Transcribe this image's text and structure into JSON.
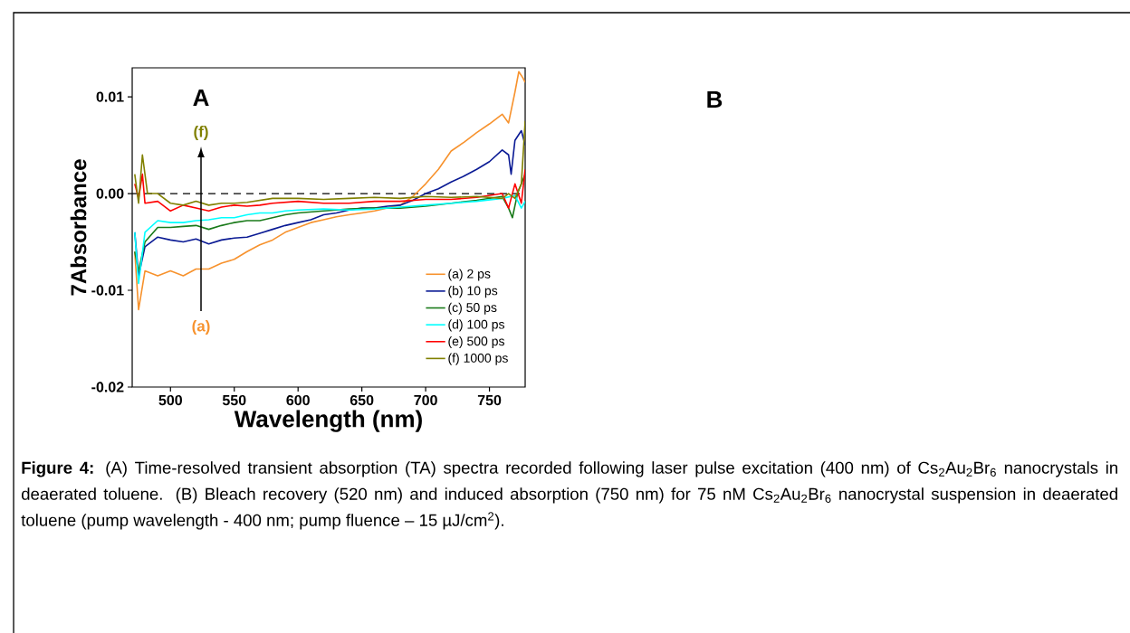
{
  "chart_data": {
    "type": "line",
    "xlabel": "Wavelength (nm)",
    "ylabel": "7Absorbance",
    "xlim": [
      470,
      778
    ],
    "ylim": [
      -0.02,
      0.013
    ],
    "xticks": [
      500,
      550,
      600,
      650,
      700,
      750
    ],
    "yticks": [
      {
        "value": -0.02,
        "label": "-0.02"
      },
      {
        "value": -0.01,
        "label": "-0.01"
      },
      {
        "value": 0,
        "label": "0.00"
      },
      {
        "value": 0.01,
        "label": "0.01"
      }
    ],
    "legend": "bottom right",
    "grid": false,
    "marker": "none",
    "line_style": "solid",
    "ref_lines": [
      {
        "axis": "y",
        "value": 0,
        "line_style": "dashed",
        "color": "#000000"
      }
    ],
    "series": [
      {
        "name": "(a) 2 ps",
        "color": "#f7922d",
        "x": [
          472,
          475,
          480,
          490,
          500,
          510,
          520,
          530,
          540,
          550,
          560,
          570,
          580,
          590,
          600,
          610,
          620,
          630,
          640,
          650,
          660,
          670,
          680,
          690,
          700,
          710,
          720,
          730,
          740,
          750,
          760,
          765,
          770,
          773,
          776,
          778
        ],
        "values": [
          -0.006,
          -0.012,
          -0.008,
          -0.0085,
          -0.008,
          -0.0085,
          -0.0078,
          -0.0078,
          -0.0072,
          -0.0068,
          -0.006,
          -0.0053,
          -0.0048,
          -0.004,
          -0.0035,
          -0.003,
          -0.0027,
          -0.0024,
          -0.0022,
          -0.002,
          -0.0018,
          -0.0015,
          -0.0012,
          -0.0003,
          0.001,
          0.0025,
          0.0044,
          0.0053,
          0.0063,
          0.0072,
          0.0082,
          0.0073,
          0.0105,
          0.0126,
          0.012,
          0.0115
        ]
      },
      {
        "name": "(b) 10 ps",
        "color": "#0a1a94",
        "x": [
          472,
          475,
          480,
          490,
          500,
          510,
          520,
          530,
          540,
          550,
          560,
          570,
          580,
          590,
          600,
          610,
          620,
          630,
          640,
          650,
          660,
          670,
          680,
          690,
          700,
          710,
          720,
          730,
          740,
          750,
          760,
          765,
          767,
          770,
          775,
          778
        ],
        "values": [
          -0.004,
          -0.0085,
          -0.0055,
          -0.0045,
          -0.0048,
          -0.005,
          -0.0047,
          -0.0052,
          -0.0048,
          -0.0046,
          -0.0045,
          -0.0041,
          -0.0037,
          -0.0033,
          -0.003,
          -0.0027,
          -0.0022,
          -0.002,
          -0.0017,
          -0.0015,
          -0.0015,
          -0.0013,
          -0.0012,
          -0.0007,
          0.0,
          0.0005,
          0.0012,
          0.0018,
          0.0025,
          0.0033,
          0.0045,
          0.004,
          0.002,
          0.0055,
          0.0065,
          0.005
        ]
      },
      {
        "name": "(c) 50 ps",
        "color": "#1a7a1a",
        "x": [
          472,
          475,
          480,
          490,
          500,
          510,
          520,
          530,
          540,
          550,
          560,
          570,
          580,
          590,
          600,
          620,
          640,
          660,
          680,
          700,
          720,
          740,
          760,
          765,
          768,
          772,
          778
        ],
        "values": [
          -0.006,
          -0.008,
          -0.005,
          -0.0035,
          -0.0035,
          -0.0034,
          -0.0033,
          -0.0037,
          -0.0033,
          -0.003,
          -0.0028,
          -0.0028,
          -0.0025,
          -0.0022,
          -0.002,
          -0.0018,
          -0.0016,
          -0.0015,
          -0.0015,
          -0.0013,
          -0.001,
          -0.0007,
          -0.0003,
          -0.0015,
          -0.0025,
          0.0,
          0.002
        ]
      },
      {
        "name": "(d) 100 ps",
        "color": "#00ffff",
        "x": [
          472,
          475,
          480,
          490,
          500,
          510,
          520,
          530,
          540,
          550,
          560,
          570,
          580,
          590,
          600,
          620,
          640,
          660,
          680,
          700,
          720,
          740,
          760,
          770,
          775,
          778
        ],
        "values": [
          -0.004,
          -0.0093,
          -0.004,
          -0.0028,
          -0.003,
          -0.003,
          -0.0028,
          -0.0027,
          -0.0025,
          -0.0025,
          -0.0022,
          -0.002,
          -0.002,
          -0.0018,
          -0.0017,
          -0.0016,
          -0.0017,
          -0.0016,
          -0.0014,
          -0.0012,
          -0.001,
          -0.0008,
          -0.0005,
          -0.0002,
          -0.0015,
          -0.0008
        ]
      },
      {
        "name": "(e) 500 ps",
        "color": "#ff0000",
        "x": [
          472,
          475,
          478,
          480,
          490,
          500,
          510,
          520,
          530,
          540,
          550,
          560,
          570,
          580,
          600,
          620,
          640,
          660,
          680,
          700,
          720,
          740,
          760,
          765,
          770,
          775,
          778
        ],
        "values": [
          0.001,
          -0.0005,
          0.002,
          -0.001,
          -0.0008,
          -0.0018,
          -0.0012,
          -0.0015,
          -0.0018,
          -0.0014,
          -0.0012,
          -0.0013,
          -0.0012,
          -0.001,
          -0.0008,
          -0.001,
          -0.001,
          -0.0008,
          -0.0008,
          -0.0006,
          -0.0006,
          -0.0004,
          0.0,
          -0.0015,
          0.001,
          -0.001,
          0.0025
        ]
      },
      {
        "name": "(f) 1000 ps",
        "color": "#808000",
        "x": [
          472,
          475,
          478,
          482,
          490,
          500,
          510,
          520,
          530,
          540,
          550,
          560,
          580,
          600,
          620,
          640,
          660,
          680,
          700,
          720,
          740,
          760,
          765,
          770,
          775,
          778
        ],
        "values": [
          0.002,
          -0.001,
          0.004,
          0.0,
          0.0,
          -0.001,
          -0.0012,
          -0.0008,
          -0.0012,
          -0.001,
          -0.001,
          -0.0009,
          -0.0005,
          -0.0005,
          -0.0006,
          -0.0005,
          -0.0004,
          -0.0005,
          -0.0003,
          -0.0004,
          -0.0003,
          -0.0005,
          0.0,
          -0.0005,
          0.001,
          0.0075
        ]
      }
    ],
    "annotations": [
      "(f)",
      "(a)",
      "A",
      "B",
      "**Figure 4:** (A) Time-resolved transient absorption (TA) spectra recorded following laser pulse excitation (400 nm) of Cs$_{2}$Au$_{2}$Br$_{6}$ nanocrystals in deaerated toluene. (B) Bleach recovery (520 nm) and induced absorption (750 nm) for 75 nM Cs$_{2}$Au$_{2}$Br$_{6}$ nanocrystal suspension in deaerated toluene (pump wavelength - 400 nm; pump fluence – 15 µJ/cm$^{2}$)."
    ]
  }
}
